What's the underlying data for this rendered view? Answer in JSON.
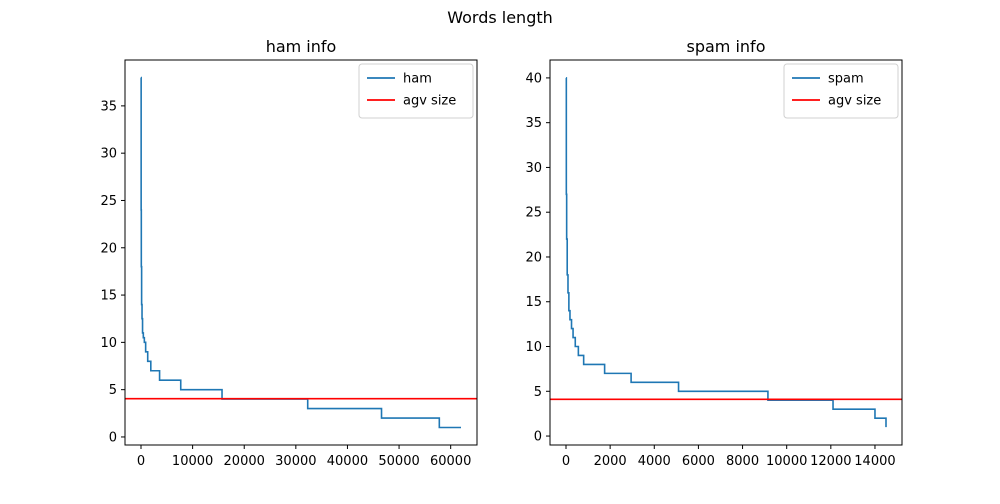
{
  "figure": {
    "suptitle": "Words length"
  },
  "chart_data": [
    {
      "type": "line",
      "title": "ham info",
      "xlabel": "",
      "ylabel": "",
      "xlim": [
        -3100,
        65100
      ],
      "ylim": [
        -0.85,
        39.85
      ],
      "xticks": [
        0,
        10000,
        20000,
        30000,
        40000,
        50000,
        60000
      ],
      "yticks": [
        0,
        5,
        10,
        15,
        20,
        25,
        30,
        35
      ],
      "grid": false,
      "legend": "top-right",
      "color": "#1f77b4",
      "avg_color": "#ff0000",
      "series": [
        {
          "name": "ham",
          "x": [
            0,
            30,
            60,
            120,
            200,
            300,
            450,
            650,
            900,
            1300,
            1900,
            3600,
            7700,
            15700,
            32300,
            46600,
            57800,
            62000
          ],
          "y": [
            38,
            24,
            18,
            14,
            12.5,
            11,
            10.5,
            10,
            9,
            8,
            7,
            6,
            5,
            4,
            3,
            2,
            1,
            1
          ]
        },
        {
          "name": "agv size",
          "type": "hline",
          "y": 4.05
        }
      ]
    },
    {
      "type": "line",
      "title": "spam info",
      "xlabel": "",
      "ylabel": "",
      "xlim": [
        -725,
        15225
      ],
      "ylim": [
        -1.0,
        42.0
      ],
      "xticks": [
        0,
        2000,
        4000,
        6000,
        8000,
        10000,
        12000,
        14000
      ],
      "yticks": [
        0,
        5,
        10,
        15,
        20,
        25,
        30,
        35,
        40
      ],
      "grid": false,
      "legend": "top-right",
      "color": "#1f77b4",
      "avg_color": "#ff0000",
      "series": [
        {
          "name": "spam",
          "x": [
            0,
            15,
            30,
            55,
            90,
            130,
            180,
            250,
            320,
            420,
            560,
            800,
            1750,
            2950,
            5100,
            9150,
            12100,
            14000,
            14500
          ],
          "y": [
            40,
            27,
            22,
            18,
            16,
            14,
            13,
            12,
            11,
            10,
            9,
            8,
            7,
            6,
            5,
            4,
            3,
            2,
            1
          ]
        },
        {
          "name": "agv size",
          "type": "hline",
          "y": 4.1
        }
      ]
    }
  ]
}
